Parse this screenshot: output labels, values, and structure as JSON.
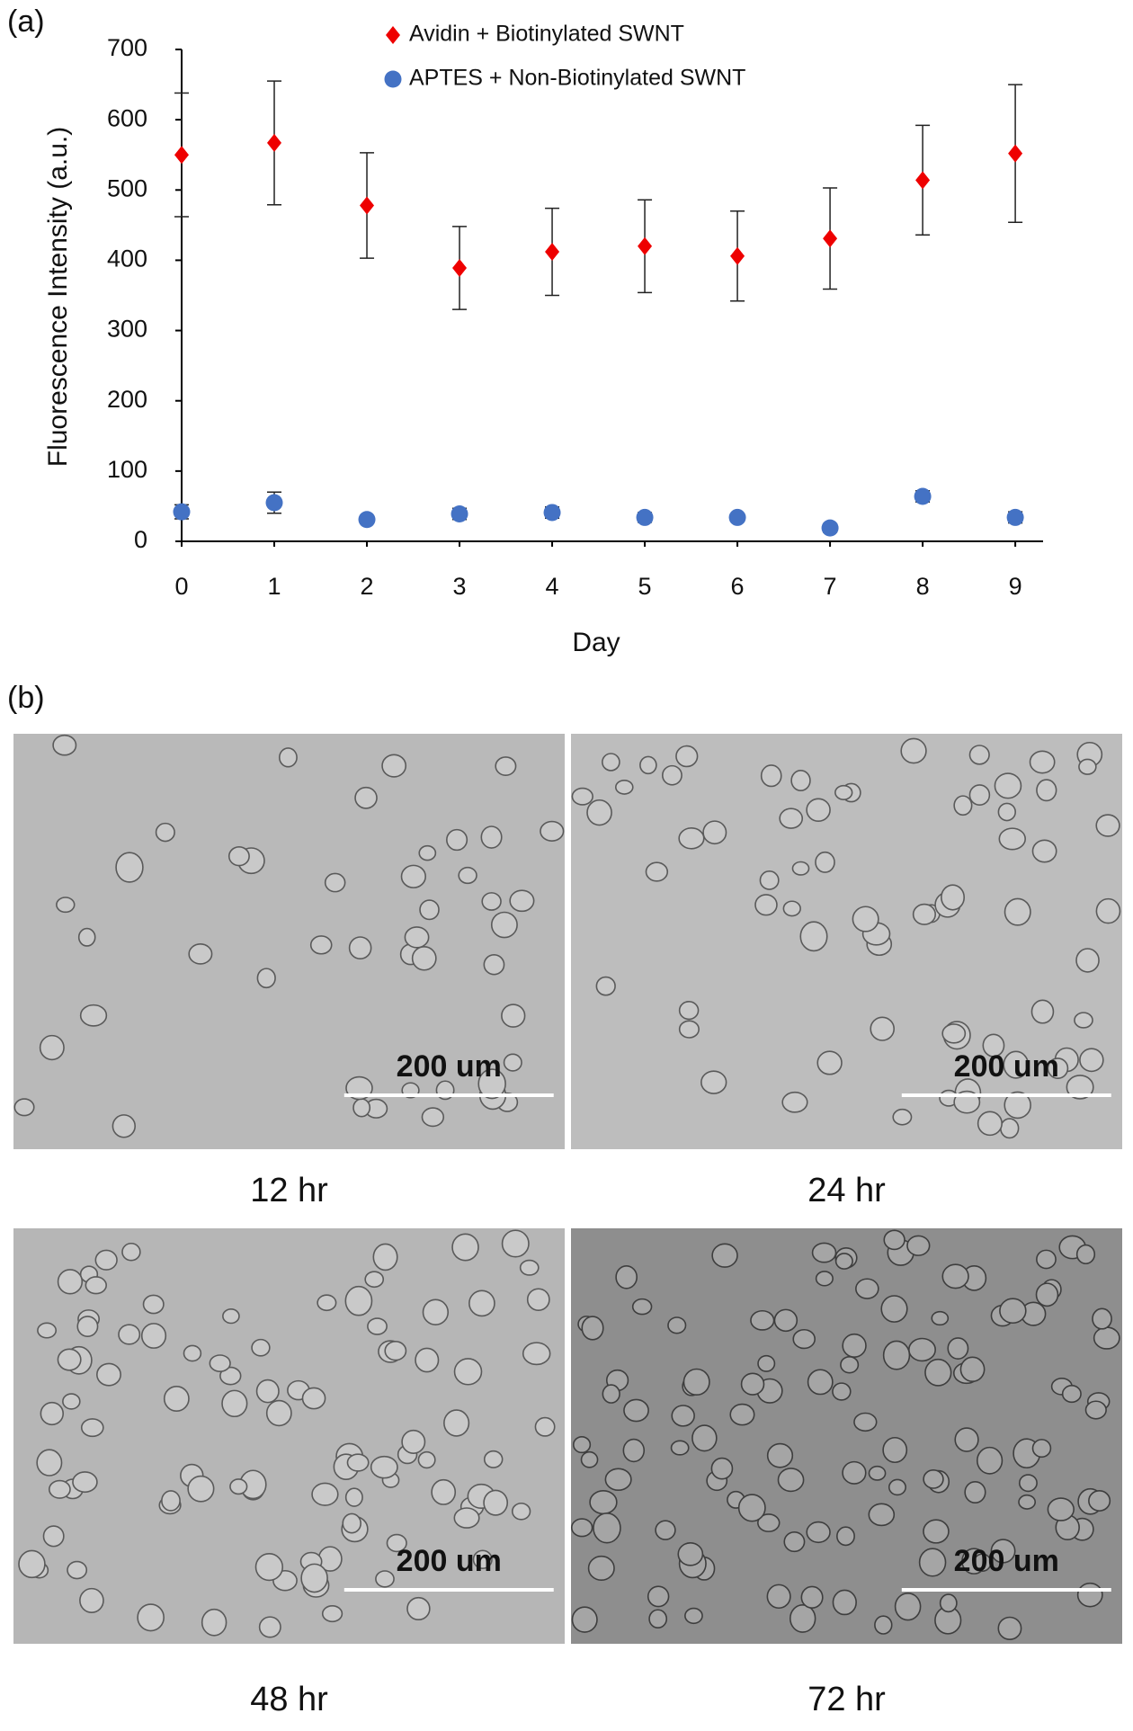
{
  "chart_data": {
    "type": "scatter",
    "panel_label": "(a)",
    "x_label": "Day",
    "y_label": "Fluorescence Intensity (a.u.)",
    "x": [
      0,
      1,
      2,
      3,
      4,
      5,
      6,
      7,
      8,
      9
    ],
    "series": [
      {
        "name": "Avidin + Biotinylated SWNT",
        "color": "#ee0000",
        "marker": "diamond",
        "values": [
          550,
          567,
          478,
          389,
          412,
          420,
          406,
          431,
          514,
          552
        ],
        "errors": [
          88,
          88,
          75,
          59,
          62,
          66,
          64,
          72,
          78,
          98
        ]
      },
      {
        "name": "APTES + Non-Biotinylated SWNT",
        "color": "#4472c4",
        "marker": "circle",
        "values": [
          42,
          55,
          31,
          39,
          41,
          34,
          34,
          19,
          64,
          34
        ],
        "errors": [
          10,
          15,
          5,
          8,
          8,
          7,
          5,
          6,
          8,
          8
        ]
      }
    ],
    "xlim": [
      0,
      9.3
    ],
    "xticks": [
      0,
      1,
      2,
      3,
      4,
      5,
      6,
      7,
      8,
      9
    ],
    "ylim": [
      0,
      700
    ],
    "yticks": [
      0,
      100,
      200,
      300,
      400,
      500,
      600,
      700
    ],
    "grid": false,
    "legend": "top"
  },
  "micrographs": {
    "panel_label": "(b)",
    "images": [
      {
        "caption": "12 hr",
        "scale_bar": "200 um"
      },
      {
        "caption": "24 hr",
        "scale_bar": "200 um"
      },
      {
        "caption": "48 hr",
        "scale_bar": "200 um"
      },
      {
        "caption": "72 hr",
        "scale_bar": "200 um"
      }
    ]
  }
}
